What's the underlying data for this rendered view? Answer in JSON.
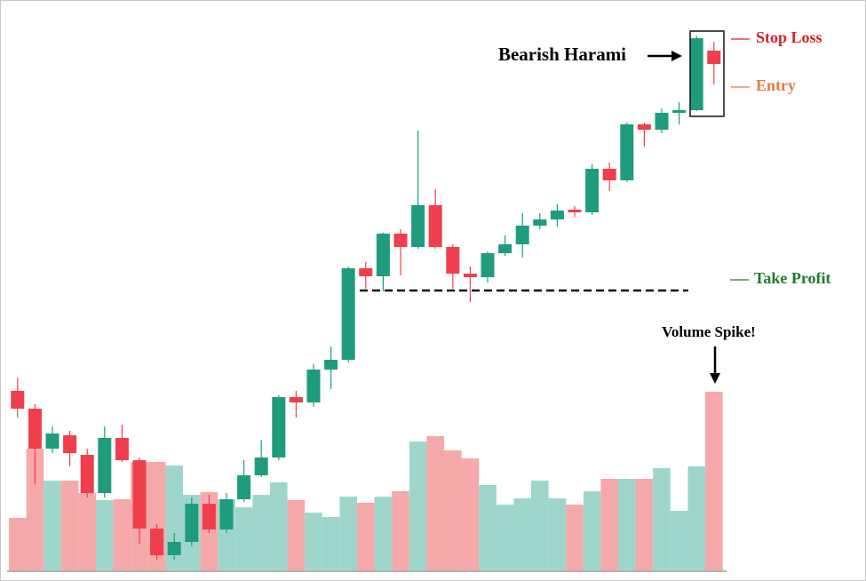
{
  "chart_data": {
    "type": "candlestick",
    "open": [
      214,
      194,
      149,
      164,
      142,
      99,
      161,
      136,
      59,
      29,
      44,
      87,
      58,
      92,
      119,
      139,
      207,
      201,
      238,
      249,
      352,
      343,
      391,
      376,
      423,
      376,
      346,
      342,
      369,
      379,
      400,
      407,
      418,
      415,
      464,
      451,
      514,
      508,
      527,
      530,
      597
    ],
    "high": [
      229,
      199,
      174,
      169,
      149,
      174,
      176,
      139,
      64,
      54,
      94,
      97,
      99,
      136,
      159,
      209,
      214,
      244,
      264,
      354,
      359,
      392,
      396,
      507,
      441,
      379,
      354,
      371,
      389,
      414,
      414,
      424,
      422,
      469,
      471,
      516,
      516,
      532,
      539,
      614,
      607
    ],
    "low": [
      184,
      109,
      144,
      129,
      94,
      94,
      134,
      42,
      24,
      24,
      39,
      54,
      54,
      89,
      117,
      136,
      184,
      196,
      216,
      246,
      329,
      326,
      344,
      374,
      374,
      329,
      314,
      336,
      366,
      364,
      396,
      399,
      410,
      412,
      439,
      449,
      489,
      504,
      514,
      529,
      559
    ],
    "close": [
      194,
      149,
      166,
      144,
      99,
      161,
      136,
      59,
      29,
      44,
      87,
      58,
      92,
      119,
      139,
      207,
      201,
      238,
      249,
      352,
      343,
      391,
      376,
      423,
      376,
      346,
      342,
      369,
      379,
      400,
      407,
      417,
      415,
      464,
      451,
      514,
      508,
      527,
      530,
      611,
      582
    ],
    "volume": [
      59,
      137,
      101,
      101,
      87,
      79,
      80,
      122,
      122,
      118,
      85,
      88,
      80,
      71,
      85,
      99,
      79,
      65,
      60,
      83,
      76,
      83,
      89,
      145,
      151,
      135,
      126,
      96,
      74,
      81,
      101,
      81,
      74,
      89,
      103,
      103,
      103,
      115,
      67,
      117,
      201
    ],
    "up_color": "#1f9c7e",
    "down_color": "#ef3f4c",
    "volume_up_color": "#9fd6cc",
    "volume_down_color": "#f5a9a8",
    "ylim": [
      12,
      654
    ],
    "y2lim": [
      0,
      642
    ],
    "pattern_label": "Bearish Harami",
    "volume_label": "Volume Spike!",
    "levels": [
      {
        "label": "Stop Loss",
        "value": 610,
        "color": "#d9202a"
      },
      {
        "label": "Entry",
        "value": 556,
        "color": "#ea7a3c"
      },
      {
        "label": "Take Profit",
        "value": 327,
        "color": "#247a2c",
        "dashed": true
      }
    ]
  }
}
